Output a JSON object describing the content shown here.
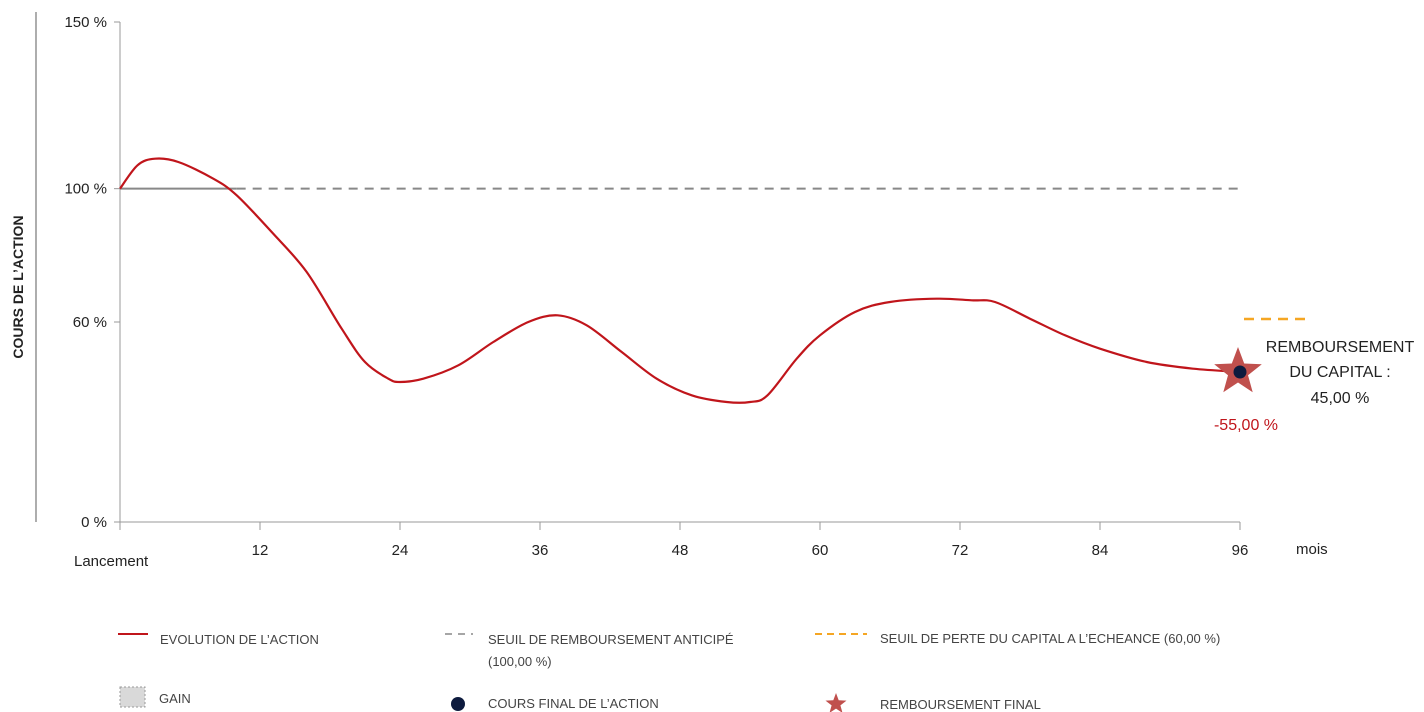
{
  "chart_data": {
    "type": "line",
    "ylabel": "COURS DE L’ACTION",
    "x_unit": "mois",
    "xlim": [
      0,
      96
    ],
    "ylim": [
      0,
      150
    ],
    "x_ticks": [
      {
        "value": 0,
        "label": "Lancement"
      },
      {
        "value": 12,
        "label": "12"
      },
      {
        "value": 24,
        "label": "24"
      },
      {
        "value": 36,
        "label": "36"
      },
      {
        "value": 48,
        "label": "48"
      },
      {
        "value": 60,
        "label": "60"
      },
      {
        "value": 72,
        "label": "72"
      },
      {
        "value": 84,
        "label": "84"
      },
      {
        "value": 96,
        "label": "96"
      }
    ],
    "y_ticks": [
      {
        "value": 0,
        "label": "0 %"
      },
      {
        "value": 60,
        "label": "60 %"
      },
      {
        "value": 100,
        "label": "100 %"
      },
      {
        "value": 150,
        "label": "150 %"
      }
    ],
    "series": [
      {
        "name": "EVOLUTION DE L’ACTION",
        "color": "#c0151b",
        "points": [
          [
            0,
            100
          ],
          [
            1.5,
            107
          ],
          [
            3,
            109
          ],
          [
            5,
            108
          ],
          [
            8,
            103
          ],
          [
            10,
            98
          ],
          [
            13,
            87
          ],
          [
            16,
            75
          ],
          [
            19,
            58
          ],
          [
            21,
            48
          ],
          [
            23,
            43
          ],
          [
            24,
            42
          ],
          [
            26,
            43
          ],
          [
            29,
            47
          ],
          [
            32,
            54
          ],
          [
            35,
            60
          ],
          [
            37.5,
            62
          ],
          [
            40,
            59
          ],
          [
            43,
            51
          ],
          [
            46,
            43
          ],
          [
            49,
            38
          ],
          [
            52,
            36
          ],
          [
            54,
            36
          ],
          [
            55.5,
            38
          ],
          [
            58,
            49
          ],
          [
            60,
            56
          ],
          [
            63,
            63
          ],
          [
            66,
            66
          ],
          [
            70,
            67
          ],
          [
            73,
            66.5
          ],
          [
            75,
            66
          ],
          [
            78,
            61
          ],
          [
            81,
            56
          ],
          [
            84,
            52
          ],
          [
            88,
            48
          ],
          [
            92,
            46
          ],
          [
            96,
            45
          ]
        ]
      },
      {
        "name": "SEUIL DE REMBOURSEMENT ANTICIPÉ",
        "color": "#888888",
        "y": 100
      },
      {
        "name": "SEUIL DE PERTE DU CAPITAL A L’ECHEANCE",
        "color": "#f5a623",
        "y": 60
      }
    ],
    "final_point": {
      "x": 96,
      "y": 45
    },
    "annotations": {
      "performance": "-55,00 %",
      "remboursement_line1": "REMBOURSEMENT",
      "remboursement_line2": "DU CAPITAL :",
      "remboursement_value": "45,00 %"
    },
    "legend": [
      {
        "key": "evolution",
        "label": "EVOLUTION DE L’ACTION",
        "label2": ""
      },
      {
        "key": "seuil_anticipe",
        "label": "SEUIL DE REMBOURSEMENT ANTICIPÉ",
        "label2": "(100,00  %)"
      },
      {
        "key": "seuil_perte",
        "label": "SEUIL DE PERTE DU CAPITAL A L’ECHEANCE (60,00 %)",
        "label2": ""
      },
      {
        "key": "gain",
        "label": "GAIN",
        "label2": ""
      },
      {
        "key": "cours_final",
        "label": "COURS FINAL DE L’ACTION",
        "label2": ""
      },
      {
        "key": "remboursement_final",
        "label": "REMBOURSEMENT FINAL",
        "label2": ""
      }
    ],
    "colors": {
      "line": "#c0151b",
      "threshold": "#888888",
      "loss_threshold": "#f5a623",
      "dot": "#0d1b3e",
      "star": "#c0504d",
      "gain_fill": "#d9d9d9"
    }
  }
}
